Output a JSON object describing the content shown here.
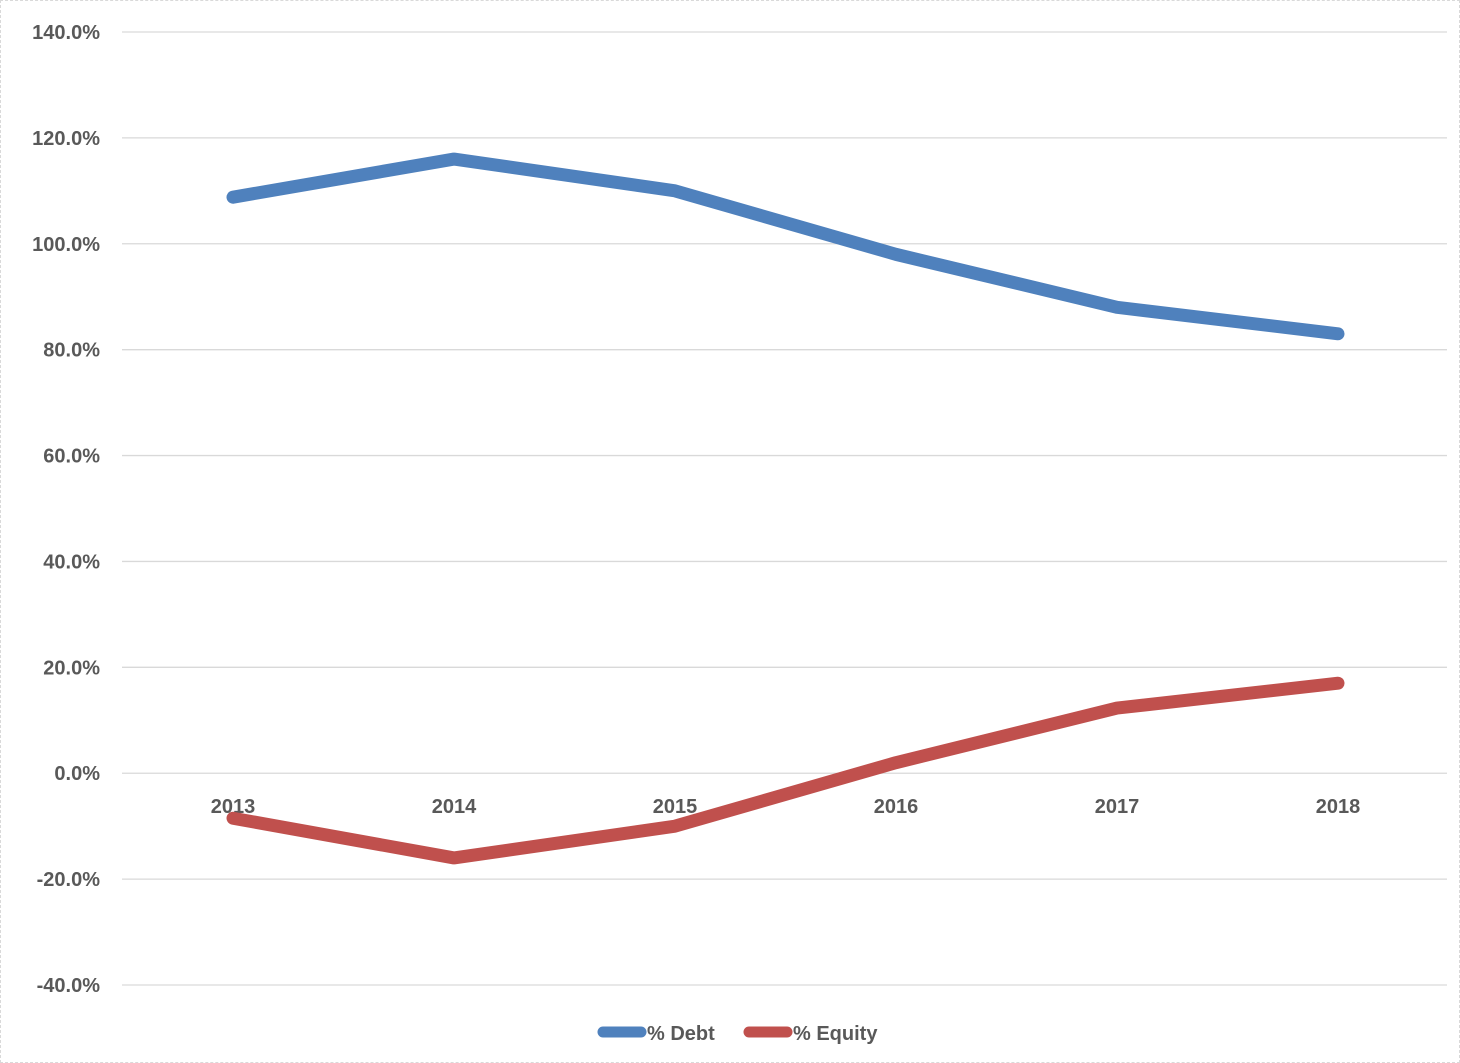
{
  "chart_data": {
    "type": "line",
    "title": "",
    "xlabel": "",
    "ylabel": "",
    "categories": [
      "2013",
      "2014",
      "2015",
      "2016",
      "2017",
      "2018"
    ],
    "ylim": [
      -40,
      140
    ],
    "y_ticks": [
      -40,
      -20,
      0,
      20,
      40,
      60,
      80,
      100,
      120,
      140
    ],
    "y_tick_labels": [
      "-40.0%",
      "-20.0%",
      "0.0%",
      "20.0%",
      "40.0%",
      "60.0%",
      "80.0%",
      "100.0%",
      "120.0%",
      "140.0%"
    ],
    "y_format": "percent",
    "grid": true,
    "legend_position": "bottom",
    "series": [
      {
        "name": "% Debt",
        "color": "#4f81bd",
        "values": [
          108.8,
          116.0,
          110.0,
          98.0,
          88.0,
          83.0
        ]
      },
      {
        "name": "% Equity",
        "color": "#c0504d",
        "values": [
          -8.5,
          -16.0,
          -10.0,
          2.0,
          12.3,
          17.0
        ]
      }
    ]
  }
}
